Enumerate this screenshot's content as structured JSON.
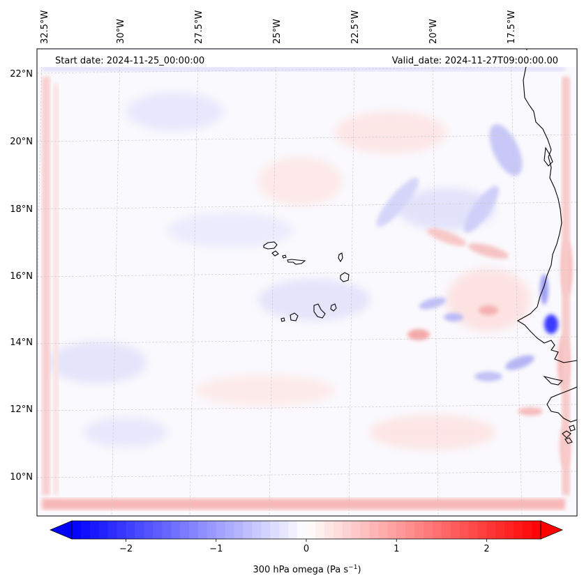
{
  "header": {
    "start_date": "Start date: 2024-11-25_00:00:00",
    "valid_date": "Valid_date: 2024-11-27T09:00:00.00"
  },
  "map": {
    "longitude_labels": [
      "32.5°W",
      "30°W",
      "27.5°W",
      "25°W",
      "22.5°W",
      "20°W",
      "17.5°W"
    ],
    "latitude_labels": [
      "22°N",
      "20°N",
      "18°N",
      "16°N",
      "14°N",
      "12°N",
      "10°N"
    ],
    "gridlines": true
  },
  "colorbar": {
    "label": "300 hPa omega (Pa s",
    "label_sup": "−1",
    "label_end": ")",
    "tick_labels": [
      "−2",
      "−1",
      "0",
      "1",
      "2"
    ],
    "tick_values": [
      -2,
      -1,
      0,
      1,
      2
    ],
    "range": [
      -2.6,
      2.6
    ],
    "colormap": "bwr",
    "extend": "both",
    "low_color": "#0000ff",
    "mid_color": "#ffffff",
    "high_color": "#ff0000"
  }
}
